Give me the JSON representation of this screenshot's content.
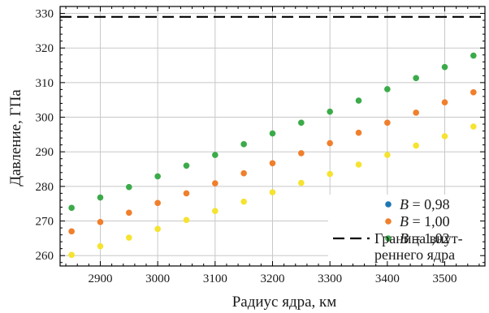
{
  "chart_data": {
    "type": "scatter",
    "xlabel": "Радиус ядра, км",
    "ylabel": "Давление, ГПа",
    "xlim": [
      2830,
      3570
    ],
    "ylim": [
      257,
      332
    ],
    "x_ticks": [
      2900,
      3000,
      3100,
      3200,
      3300,
      3400,
      3500
    ],
    "y_ticks": [
      260,
      270,
      280,
      290,
      300,
      310,
      320,
      330
    ],
    "grid": true,
    "legend_placement": "bottom-right",
    "x": [
      2850,
      2900,
      2950,
      3000,
      3050,
      3100,
      3150,
      3200,
      3250,
      3300,
      3350,
      3400,
      3450,
      3500,
      3550
    ],
    "series": [
      {
        "label_var": "B",
        "label_eq": " = 0,98",
        "color": "#1f77b4",
        "values": [
          null,
          null,
          null,
          null,
          null,
          null,
          null,
          null,
          null,
          null,
          null,
          null,
          null,
          null,
          null
        ]
      },
      {
        "label_var": "B",
        "label_eq": " = 1,00",
        "color": "#f07f2c",
        "values": [
          267.0,
          269.7,
          272.4,
          275.2,
          278.0,
          280.9,
          283.8,
          286.7,
          289.6,
          292.5,
          295.5,
          298.4,
          301.3,
          304.3,
          307.2
        ]
      },
      {
        "label_var": "B",
        "label_eq": " = 1,02",
        "color": "#3bab4a",
        "values": [
          273.8,
          276.8,
          279.8,
          282.9,
          286.0,
          289.1,
          292.2,
          295.3,
          298.4,
          301.6,
          304.8,
          308.1,
          311.3,
          314.5,
          317.8
        ]
      },
      {
        "color": "#f5e330",
        "values": [
          260.2,
          262.7,
          265.2,
          267.7,
          270.3,
          272.9,
          275.6,
          278.3,
          281.0,
          283.6,
          286.3,
          289.1,
          291.8,
          294.5,
          297.3
        ]
      }
    ],
    "reference_line": {
      "y": 329,
      "label_line1": "Граница внут-",
      "label_line2": "реннего ядра",
      "color": "#000000"
    }
  }
}
